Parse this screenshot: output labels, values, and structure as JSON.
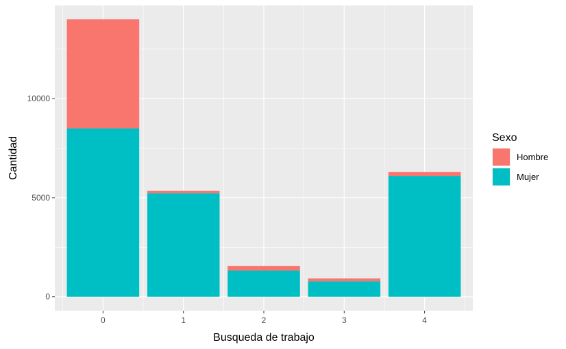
{
  "chart_data": {
    "type": "bar",
    "stacked": true,
    "categories": [
      "0",
      "1",
      "2",
      "3",
      "4"
    ],
    "series": [
      {
        "name": "Hombre",
        "color": "#F8766D",
        "values": [
          5500,
          120,
          230,
          150,
          200
        ]
      },
      {
        "name": "Mujer",
        "color": "#00BFC4",
        "values": [
          8500,
          5230,
          1320,
          780,
          6100
        ]
      }
    ],
    "xlabel": "Busqueda de trabajo",
    "ylabel": "Cantidad",
    "ylim": [
      -700,
      14700
    ],
    "yticks": [
      0,
      5000,
      10000
    ],
    "ytick_labels": [
      "0",
      "5000",
      "10000"
    ],
    "grid": true,
    "legend": {
      "title": "Sexo",
      "placement": "right"
    }
  }
}
